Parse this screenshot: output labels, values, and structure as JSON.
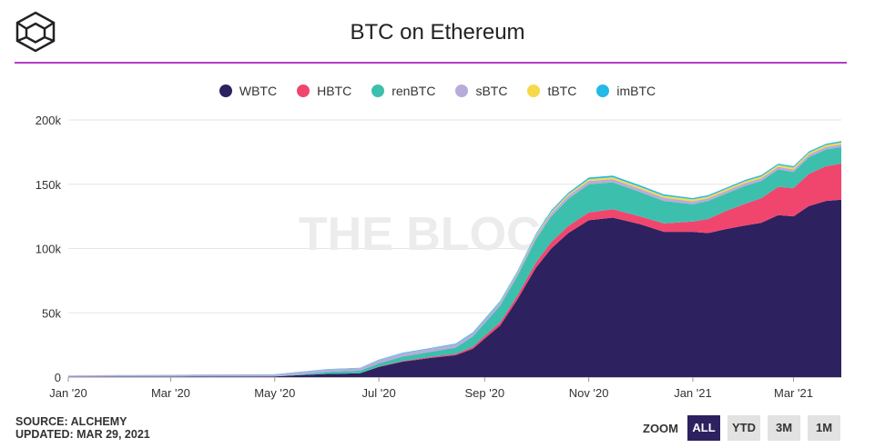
{
  "header": {
    "title": "BTC on Ethereum"
  },
  "legend": [
    {
      "label": "WBTC",
      "color": "#2d2160"
    },
    {
      "label": "HBTC",
      "color": "#f0466e"
    },
    {
      "label": "renBTC",
      "color": "#3dbfae"
    },
    {
      "label": "sBTC",
      "color": "#b7acd9"
    },
    {
      "label": "tBTC",
      "color": "#f5d94a"
    },
    {
      "label": "imBTC",
      "color": "#23b9e8"
    }
  ],
  "watermark": "THE BLOCK",
  "footer": {
    "source": "SOURCE: ALCHEMY",
    "updated": "UPDATED: MAR 29, 2021"
  },
  "zoom": {
    "label": "ZOOM",
    "buttons": [
      "ALL",
      "YTD",
      "3M",
      "1M"
    ],
    "active": "ALL"
  },
  "chart_data": {
    "type": "area",
    "stacked": true,
    "x": [
      "2020-01-01",
      "2020-02-01",
      "2020-03-01",
      "2020-04-01",
      "2020-05-01",
      "2020-05-15",
      "2020-06-01",
      "2020-06-20",
      "2020-07-01",
      "2020-07-15",
      "2020-08-01",
      "2020-08-15",
      "2020-08-25",
      "2020-09-01",
      "2020-09-10",
      "2020-09-20",
      "2020-10-01",
      "2020-10-10",
      "2020-10-20",
      "2020-11-01",
      "2020-11-15",
      "2020-12-01",
      "2020-12-15",
      "2021-01-01",
      "2021-01-10",
      "2021-01-20",
      "2021-02-01",
      "2021-02-10",
      "2021-02-20",
      "2021-03-01",
      "2021-03-10",
      "2021-03-20",
      "2021-03-29"
    ],
    "x_ticks": [
      "Jan '20",
      "Mar '20",
      "May '20",
      "Jul '20",
      "Sep '20",
      "Nov '20",
      "Jan '21",
      "Mar '21"
    ],
    "y_ticks": [
      "0",
      "50k",
      "100k",
      "150k",
      "200k"
    ],
    "ylim": [
      0,
      200000
    ],
    "grid": true,
    "legend_position": "top-center",
    "series": [
      {
        "name": "WBTC",
        "values": [
          200,
          250,
          300,
          400,
          500,
          1500,
          2500,
          3000,
          8000,
          12000,
          15000,
          17000,
          22000,
          30000,
          40000,
          60000,
          85000,
          100000,
          112000,
          122000,
          124000,
          119000,
          113000,
          113000,
          112000,
          115000,
          118000,
          120000,
          126000,
          125000,
          133000,
          137000,
          138000
        ]
      },
      {
        "name": "HBTC",
        "values": [
          0,
          0,
          0,
          0,
          0,
          0,
          0,
          0,
          200,
          500,
          800,
          1000,
          1500,
          2000,
          2500,
          3000,
          4000,
          5000,
          5500,
          6000,
          6500,
          6000,
          6500,
          8000,
          11000,
          14000,
          17000,
          19000,
          22000,
          22000,
          25000,
          27000,
          28000
        ]
      },
      {
        "name": "renBTC",
        "values": [
          0,
          0,
          0,
          0,
          0,
          500,
          1500,
          2000,
          2500,
          3500,
          4000,
          5000,
          8000,
          10000,
          13000,
          15000,
          18000,
          20000,
          21000,
          22000,
          21000,
          19000,
          17500,
          13500,
          14000,
          13500,
          14000,
          13500,
          13500,
          12500,
          13000,
          13000,
          13000
        ]
      },
      {
        "name": "sBTC",
        "values": [
          1000,
          1200,
          1300,
          1500,
          1500,
          1800,
          2000,
          2000,
          2500,
          2500,
          2500,
          2500,
          2500,
          2500,
          2500,
          2500,
          2500,
          2500,
          2500,
          2500,
          2500,
          2500,
          2500,
          2200,
          2000,
          2000,
          2000,
          2000,
          2000,
          2000,
          2000,
          2000,
          2000
        ]
      },
      {
        "name": "tBTC",
        "values": [
          0,
          0,
          0,
          0,
          0,
          0,
          0,
          0,
          0,
          0,
          0,
          0,
          0,
          0,
          300,
          500,
          800,
          1000,
          1200,
          1500,
          1500,
          1500,
          1500,
          1500,
          1500,
          1500,
          1500,
          1500,
          1500,
          1500,
          1500,
          1500,
          1500
        ]
      },
      {
        "name": "imBTC",
        "values": [
          100,
          150,
          150,
          200,
          200,
          200,
          300,
          300,
          400,
          500,
          500,
          600,
          700,
          800,
          900,
          1000,
          1100,
          1200,
          1200,
          1200,
          1200,
          1200,
          1100,
          1000,
          1000,
          1000,
          1000,
          1000,
          1000,
          1000,
          1000,
          1000,
          1000
        ]
      }
    ]
  }
}
